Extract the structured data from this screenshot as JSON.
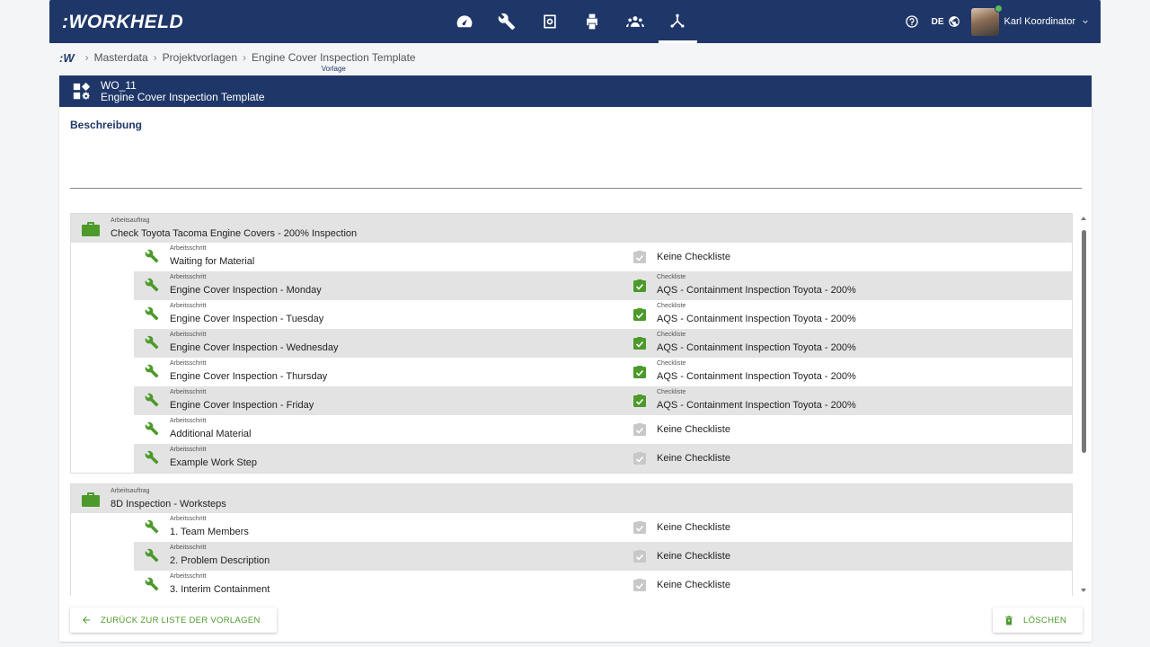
{
  "app": {
    "logo": ":WORKHELD"
  },
  "nav": {
    "active": "structure-icon"
  },
  "topRight": {
    "lang": "DE",
    "user": "Karl Koordinator"
  },
  "breadcrumb": {
    "logo": ":W",
    "items": [
      "Masterdata",
      "Projektvorlagen",
      "Engine Cover Inspection Template"
    ],
    "subtitle": "Vorlage"
  },
  "header": {
    "code": "WO_11",
    "title": "Engine Cover Inspection Template"
  },
  "description": {
    "label": "Beschreibung",
    "value": ""
  },
  "labels": {
    "order": "Arbeitsauftrag",
    "step": "Arbeitsschritt",
    "checklist": "Checkliste",
    "noChecklist": "Keine Checkliste"
  },
  "orders": [
    {
      "title": "Check Toyota Tacoma Engine Covers - 200% Inspection",
      "steps": [
        {
          "title": "Waiting for Material",
          "checklist": null
        },
        {
          "title": "Engine Cover Inspection - Monday",
          "checklist": "AQS - Containment Inspection Toyota - 200%"
        },
        {
          "title": "Engine Cover Inspection - Tuesday",
          "checklist": "AQS - Containment Inspection Toyota - 200%"
        },
        {
          "title": "Engine Cover Inspection - Wednesday",
          "checklist": "AQS - Containment Inspection Toyota - 200%"
        },
        {
          "title": "Engine Cover Inspection - Thursday",
          "checklist": "AQS - Containment Inspection Toyota - 200%"
        },
        {
          "title": "Engine Cover Inspection - Friday",
          "checklist": "AQS - Containment Inspection Toyota - 200%"
        },
        {
          "title": "Additional Material",
          "checklist": null
        },
        {
          "title": "Example Work Step",
          "checklist": null
        }
      ]
    },
    {
      "title": "8D Inspection - Worksteps",
      "steps": [
        {
          "title": "1. Team Members",
          "checklist": null
        },
        {
          "title": "2. Problem Description",
          "checklist": null
        },
        {
          "title": "3. Interim Containment",
          "checklist": null
        }
      ]
    }
  ],
  "buttons": {
    "back": "ZURÜCK ZUR LISTE DER VORLAGEN",
    "delete": "LÖSCHEN"
  },
  "colors": {
    "primary": "#1f3768",
    "accent": "#4c9a2a",
    "rowAlt": "#e3e3e3"
  }
}
